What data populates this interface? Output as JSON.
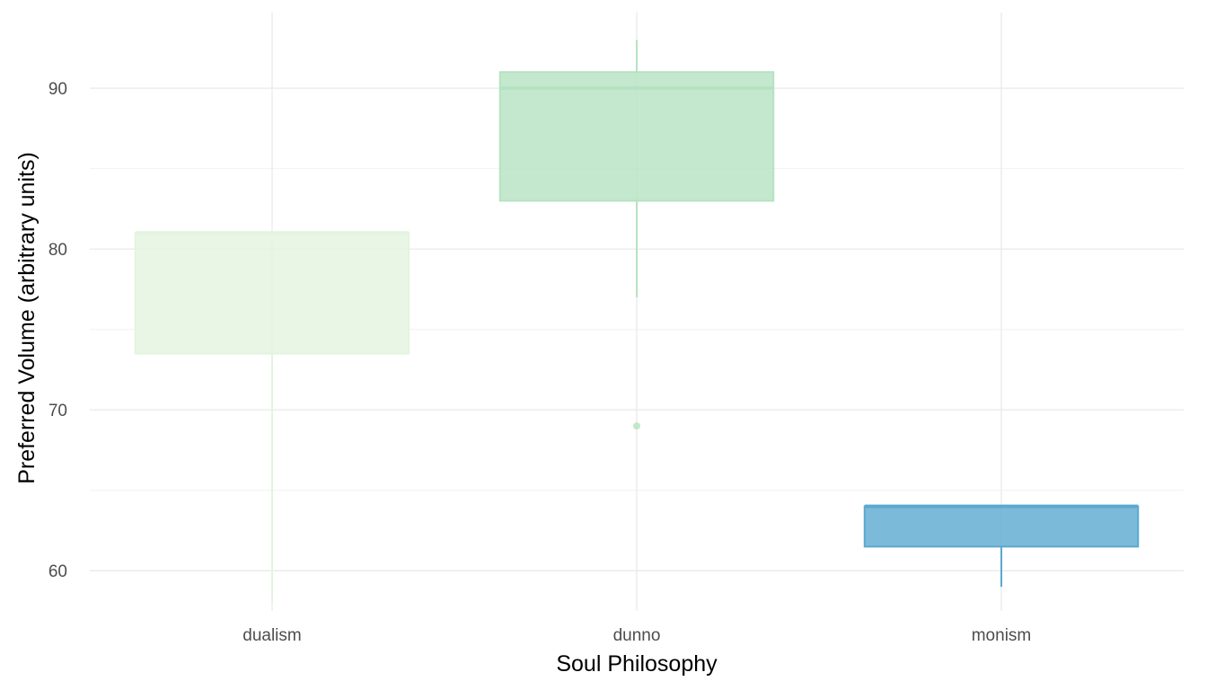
{
  "chart_data": {
    "type": "boxplot",
    "title": "",
    "xlabel": "Soul Philosophy",
    "ylabel": "Preferred Volume (arbitrary units)",
    "ylim": [
      57.5,
      94.7
    ],
    "yticks": [
      60,
      70,
      80,
      90
    ],
    "grid": true,
    "legend": "none",
    "categories": [
      "dualism",
      "dunno",
      "monism"
    ],
    "boxes": [
      {
        "category": "dualism",
        "q1": 73.5,
        "median": 81,
        "q3": 81,
        "whisker_low": 58,
        "whisker_high": 81,
        "outliers": [],
        "color": "#e3f4de"
      },
      {
        "category": "dunno",
        "q1": 83,
        "median": 90,
        "q3": 91,
        "whisker_low": 77,
        "whisker_high": 93,
        "outliers": [
          69
        ],
        "color": "#b5e2c1"
      },
      {
        "category": "monism",
        "q1": 61.5,
        "median": 64,
        "q3": 64,
        "whisker_low": 59,
        "whisker_high": 64,
        "outliers": [],
        "color": "#5ba9d0"
      }
    ]
  }
}
